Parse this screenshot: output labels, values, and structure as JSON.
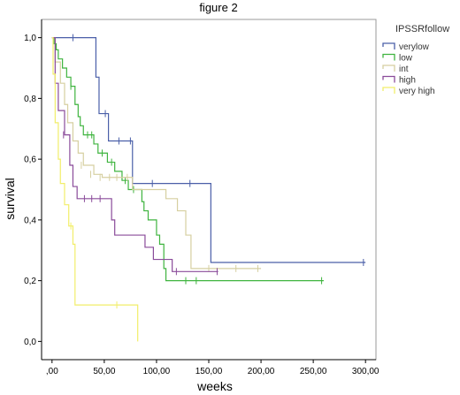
{
  "chart_data": {
    "type": "line",
    "title": "figure 2",
    "xlabel": "weeks",
    "ylabel": "survival",
    "xlim": [
      -10,
      310
    ],
    "ylim": [
      -0.06,
      1.06
    ],
    "x_ticks": [
      0,
      50,
      100,
      150,
      200,
      250,
      300
    ],
    "x_tick_labels": [
      ",00",
      "50,00",
      "100,00",
      "150,00",
      "200,00",
      "250,00",
      "300,00"
    ],
    "y_ticks": [
      0,
      0.2,
      0.4,
      0.6,
      0.8,
      1.0
    ],
    "y_tick_labels": [
      "0,0",
      "0,2",
      "0,4",
      "0,6",
      "0,8",
      "1,0"
    ],
    "grid": false,
    "legend_title": "IPSSRfollow",
    "legend_position": "right",
    "series": [
      {
        "name": "verylow",
        "color": "#4a5fa8",
        "steps": [
          [
            0,
            1.0
          ],
          [
            42,
            0.87
          ],
          [
            45,
            0.75
          ],
          [
            54,
            0.66
          ],
          [
            77,
            0.52
          ],
          [
            152,
            0.26
          ],
          [
            300,
            0.26
          ]
        ],
        "censored": [
          [
            20,
            1.0
          ],
          [
            51,
            0.75
          ],
          [
            64,
            0.66
          ],
          [
            75,
            0.66
          ],
          [
            96,
            0.52
          ],
          [
            132,
            0.52
          ],
          [
            298,
            0.26
          ]
        ]
      },
      {
        "name": "low",
        "color": "#3fb43f",
        "steps": [
          [
            0,
            1.0
          ],
          [
            2,
            0.98
          ],
          [
            4,
            0.96
          ],
          [
            6,
            0.93
          ],
          [
            10,
            0.9
          ],
          [
            14,
            0.87
          ],
          [
            18,
            0.84
          ],
          [
            22,
            0.78
          ],
          [
            25,
            0.74
          ],
          [
            27,
            0.71
          ],
          [
            30,
            0.68
          ],
          [
            40,
            0.65
          ],
          [
            44,
            0.62
          ],
          [
            53,
            0.59
          ],
          [
            60,
            0.56
          ],
          [
            67,
            0.53
          ],
          [
            73,
            0.5
          ],
          [
            86,
            0.46
          ],
          [
            88,
            0.43
          ],
          [
            92,
            0.4
          ],
          [
            100,
            0.35
          ],
          [
            103,
            0.32
          ],
          [
            107,
            0.24
          ],
          [
            109,
            0.2
          ],
          [
            260,
            0.2
          ]
        ],
        "censored": [
          [
            18,
            0.84
          ],
          [
            34,
            0.68
          ],
          [
            38,
            0.68
          ],
          [
            48,
            0.62
          ],
          [
            57,
            0.59
          ],
          [
            70,
            0.53
          ],
          [
            78,
            0.5
          ],
          [
            128,
            0.2
          ],
          [
            138,
            0.2
          ],
          [
            258,
            0.2
          ]
        ]
      },
      {
        "name": "int",
        "color": "#d6cfa0",
        "steps": [
          [
            0,
            1.0
          ],
          [
            3,
            0.92
          ],
          [
            8,
            0.85
          ],
          [
            12,
            0.78
          ],
          [
            15,
            0.72
          ],
          [
            20,
            0.66
          ],
          [
            25,
            0.62
          ],
          [
            30,
            0.58
          ],
          [
            40,
            0.55
          ],
          [
            48,
            0.54
          ],
          [
            77,
            0.5
          ],
          [
            109,
            0.47
          ],
          [
            120,
            0.43
          ],
          [
            128,
            0.35
          ],
          [
            133,
            0.24
          ],
          [
            200,
            0.24
          ]
        ],
        "censored": [
          [
            28,
            0.58
          ],
          [
            37,
            0.55
          ],
          [
            46,
            0.54
          ],
          [
            55,
            0.54
          ],
          [
            62,
            0.54
          ],
          [
            72,
            0.54
          ],
          [
            150,
            0.24
          ],
          [
            176,
            0.24
          ],
          [
            197,
            0.24
          ]
        ]
      },
      {
        "name": "high",
        "color": "#8a4b9a",
        "steps": [
          [
            0,
            1.0
          ],
          [
            3,
            0.85
          ],
          [
            6,
            0.76
          ],
          [
            12,
            0.68
          ],
          [
            17,
            0.58
          ],
          [
            20,
            0.51
          ],
          [
            24,
            0.47
          ],
          [
            57,
            0.4
          ],
          [
            60,
            0.35
          ],
          [
            89,
            0.31
          ],
          [
            97,
            0.27
          ],
          [
            115,
            0.23
          ],
          [
            159,
            0.23
          ]
        ],
        "censored": [
          [
            11,
            0.68
          ],
          [
            31,
            0.47
          ],
          [
            38,
            0.47
          ],
          [
            46,
            0.47
          ],
          [
            119,
            0.23
          ],
          [
            158,
            0.23
          ]
        ]
      },
      {
        "name": "very high",
        "color": "#f2ee6a",
        "steps": [
          [
            0,
            1.0
          ],
          [
            1,
            0.88
          ],
          [
            3,
            0.72
          ],
          [
            6,
            0.6
          ],
          [
            8,
            0.52
          ],
          [
            12,
            0.45
          ],
          [
            16,
            0.38
          ],
          [
            20,
            0.32
          ],
          [
            22,
            0.12
          ],
          [
            79,
            0.12
          ],
          [
            82,
            0.0
          ]
        ],
        "censored": [
          [
            18,
            0.38
          ],
          [
            62,
            0.12
          ]
        ]
      }
    ]
  }
}
